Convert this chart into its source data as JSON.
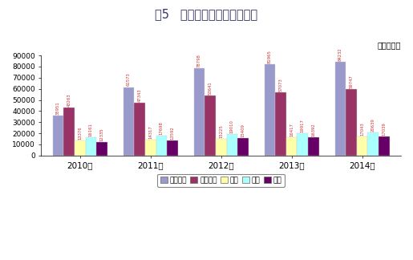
{
  "title": "图5   近五年社会保险参保人数",
  "unit_label": "单位：万人",
  "years": [
    "2010年",
    "2011年",
    "2012年",
    "2013年",
    "2014年"
  ],
  "categories": [
    "基本养老",
    "基本医疗",
    "失业",
    "工伤",
    "生育"
  ],
  "values": [
    [
      35951,
      43263,
      13376,
      16161,
      12335
    ],
    [
      61573,
      47343,
      14317,
      17698,
      13592
    ],
    [
      78798,
      53641,
      15225,
      19010,
      15409
    ],
    [
      81965,
      57073,
      16417,
      19917,
      16392
    ],
    [
      84232,
      59747,
      17043,
      20639,
      17039
    ]
  ],
  "bar_colors": [
    "#9999cc",
    "#993366",
    "#ffffaa",
    "#aaffff",
    "#660066"
  ],
  "ylim": [
    0,
    90000
  ],
  "yticks": [
    0,
    10000,
    20000,
    30000,
    40000,
    50000,
    60000,
    70000,
    80000,
    90000
  ],
  "value_label_color": "#cc3333",
  "bg_color": "#ffffff"
}
